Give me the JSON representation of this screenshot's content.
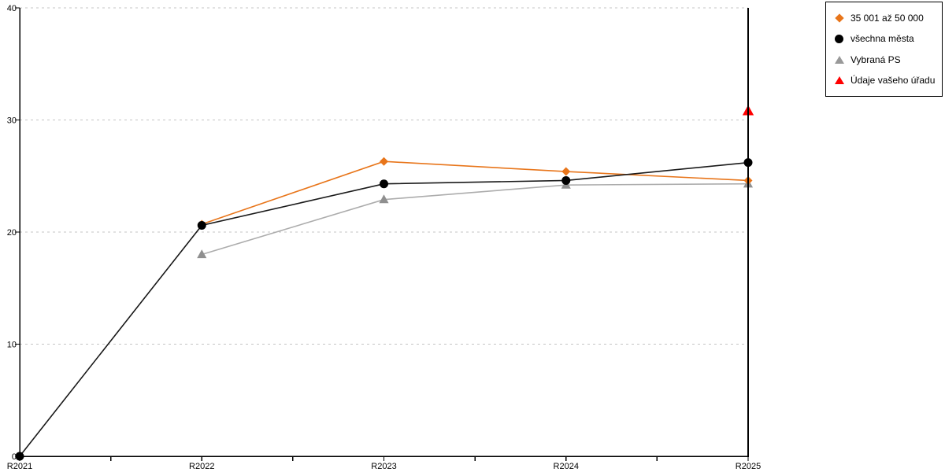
{
  "chart_data": {
    "type": "line",
    "categories": [
      "R2021",
      "R2022",
      "R2023",
      "R2024",
      "R2025"
    ],
    "ylim": [
      0,
      40
    ],
    "yticks": [
      0,
      10,
      20,
      30,
      40
    ],
    "x_minor_ticks_between_years": true,
    "grid": "horizontal dashed",
    "grid_color": "#C4C4C4",
    "axis_color": "#000000",
    "right_boundary_line": true,
    "legend_position": "top-right",
    "series": [
      {
        "key": "vybrana-ps",
        "name": "Vybraná PS",
        "marker": "triangle",
        "color": "#8F8F8F",
        "line_color": "#ACACAC",
        "marker_size": 11,
        "values": [
          null,
          18,
          22.9,
          24.2,
          24.3
        ]
      },
      {
        "key": "35001-az-50000",
        "name": "35 001 až 50 000",
        "marker": "diamond",
        "color": "#E8751A",
        "line_color": "#E8751A",
        "marker_size": 10,
        "values": [
          null,
          20.7,
          26.3,
          25.4,
          24.6
        ]
      },
      {
        "key": "vsechna-mesta",
        "name": "všechna města",
        "marker": "circle",
        "color": "#000000",
        "line_color": "#1A1A1A",
        "marker_size": 11,
        "values": [
          0,
          20.6,
          24.3,
          24.6,
          26.2
        ]
      },
      {
        "key": "udaje-vaseho-uradu",
        "name": "Údaje vašeho úřadu",
        "marker": "triangle",
        "color": "#FF0000",
        "line_color": "#FF0000",
        "marker_size": 13,
        "values": [
          null,
          null,
          null,
          null,
          30.8
        ]
      }
    ]
  },
  "legend": {
    "items": [
      {
        "label": "35 001 až 50 000",
        "marker": "diamond",
        "color": "#E8751A"
      },
      {
        "label": "všechna města",
        "marker": "circle",
        "color": "#000000"
      },
      {
        "label": "Vybraná PS",
        "marker": "triangle",
        "color": "#999999"
      },
      {
        "label": "Údaje vašeho úřadu",
        "marker": "triangle",
        "color": "#FF0000"
      }
    ]
  }
}
